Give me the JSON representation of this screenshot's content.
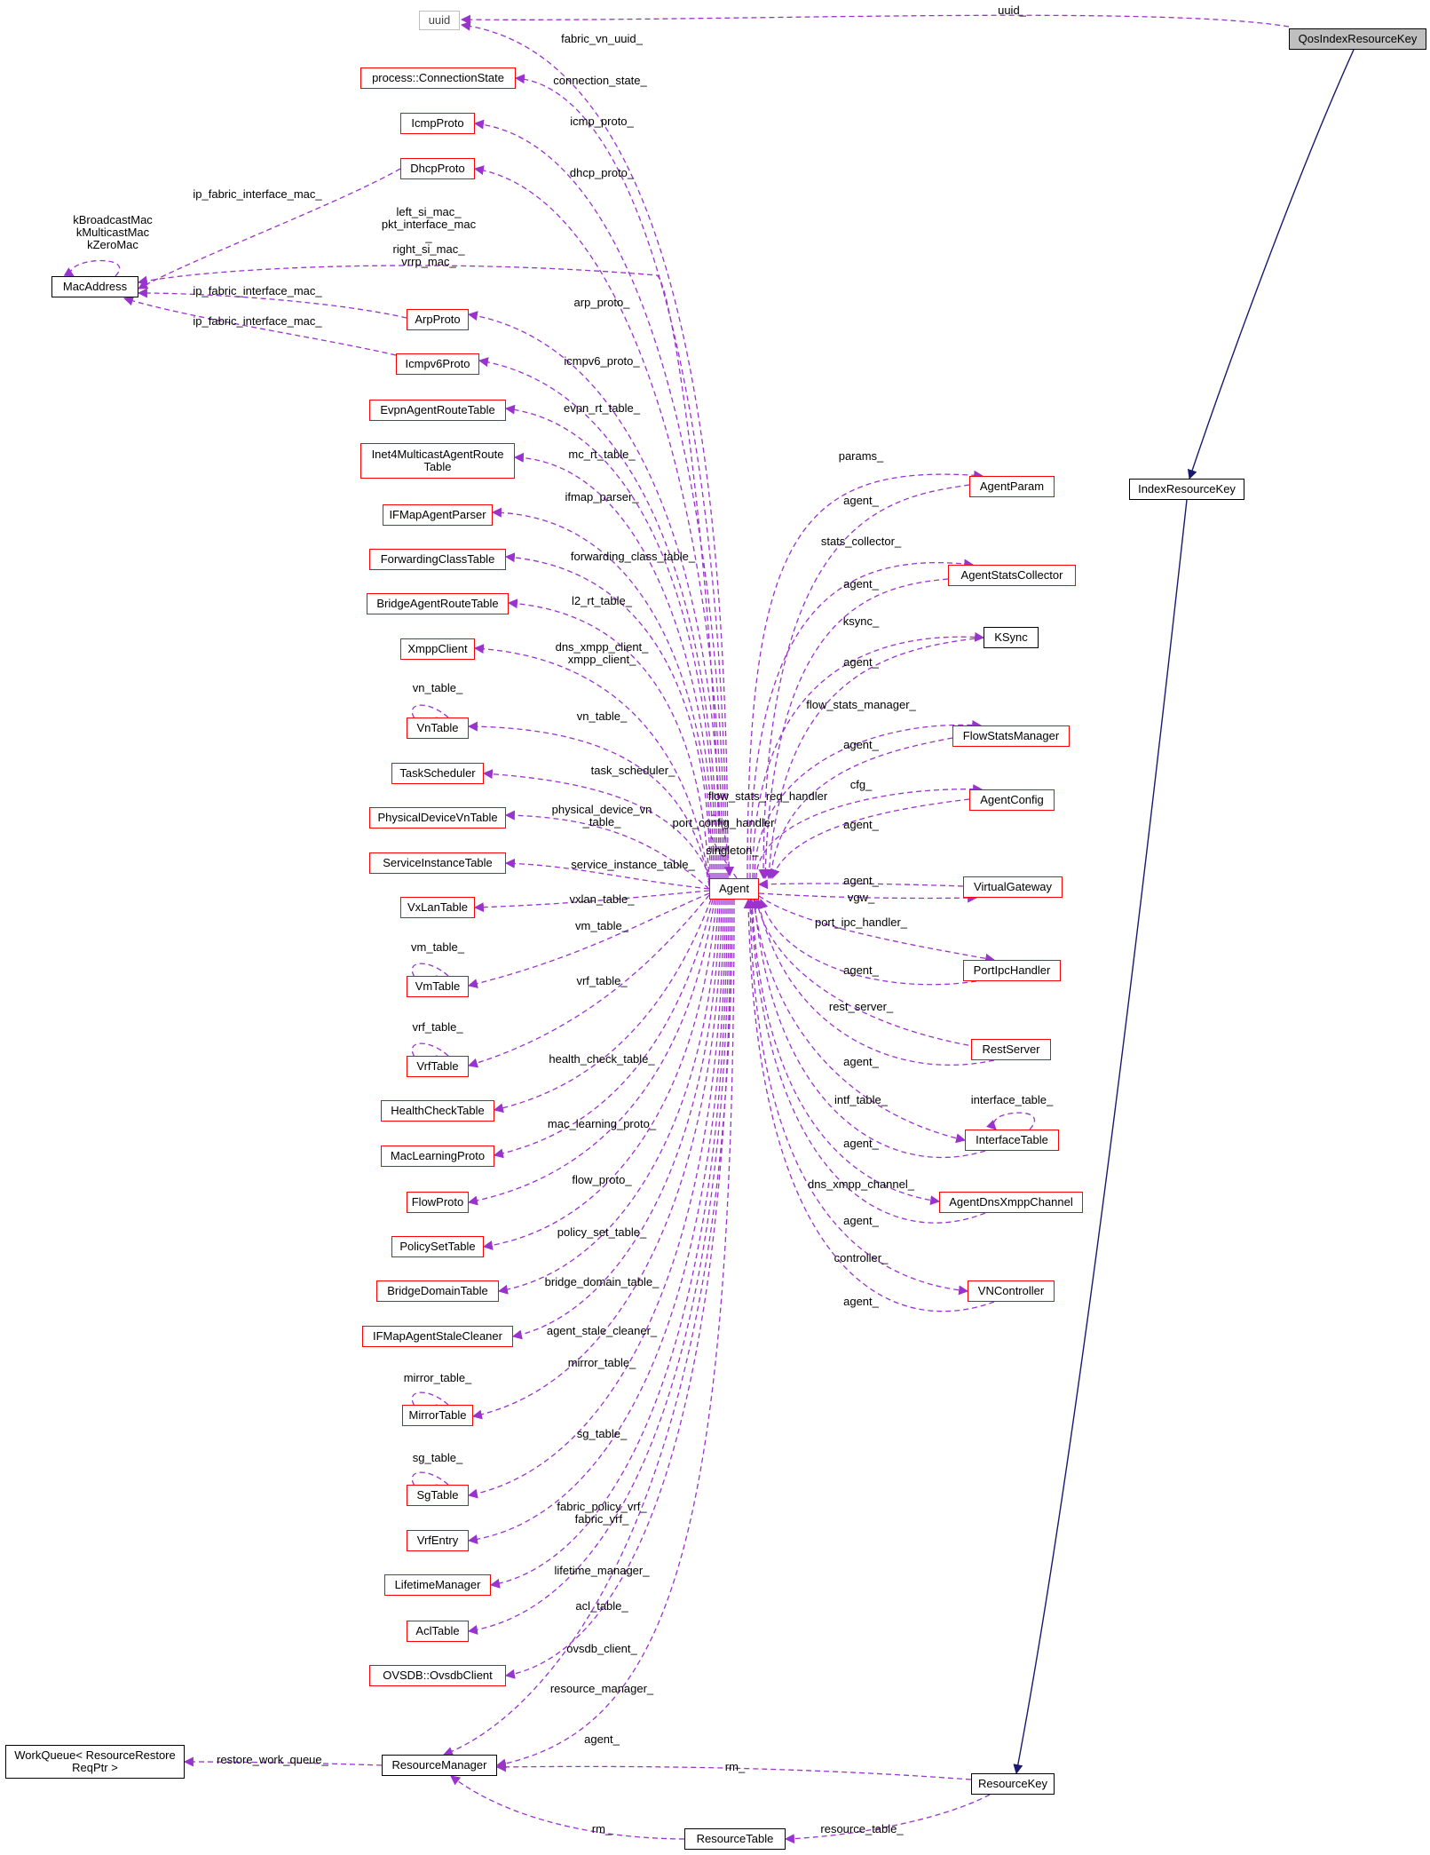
{
  "colors": {
    "usage_edge": "#9a32cd",
    "inherit_edge": "#191970",
    "node_border_red": "#ff0000",
    "node_border_black": "#000000",
    "selected_fill": "#bfbfbf"
  },
  "nodes": {
    "uuid": "uuid",
    "qos_index_resource_key": "QosIndexResourceKey",
    "index_resource_key": "IndexResourceKey",
    "resource_key": "ResourceKey",
    "resource_manager": "ResourceManager",
    "resource_table": "ResourceTable",
    "work_queue": "WorkQueue< ResourceRestore\nReqPtr >",
    "agent": "Agent",
    "mac_address": "MacAddress",
    "connection_state": "process::ConnectionState",
    "icmp_proto": "IcmpProto",
    "dhcp_proto": "DhcpProto",
    "arp_proto": "ArpProto",
    "icmpv6_proto": "Icmpv6Proto",
    "evpn_agent_route_table": "EvpnAgentRouteTable",
    "inet4_multicast_agent_route_table": "Inet4MulticastAgentRoute\nTable",
    "ifmap_agent_parser": "IFMapAgentParser",
    "forwarding_class_table": "ForwardingClassTable",
    "bridge_agent_route_table": "BridgeAgentRouteTable",
    "xmpp_client": "XmppClient",
    "vn_table": "VnTable",
    "task_scheduler": "TaskScheduler",
    "physical_device_vn_table": "PhysicalDeviceVnTable",
    "service_instance_table": "ServiceInstanceTable",
    "vxlan_table": "VxLanTable",
    "vm_table": "VmTable",
    "vrf_table": "VrfTable",
    "health_check_table": "HealthCheckTable",
    "mac_learning_proto": "MacLearningProto",
    "flow_proto": "FlowProto",
    "policy_set_table": "PolicySetTable",
    "bridge_domain_table": "BridgeDomainTable",
    "ifmap_agent_stale_cleaner": "IFMapAgentStaleCleaner",
    "mirror_table": "MirrorTable",
    "sg_table": "SgTable",
    "vrf_entry": "VrfEntry",
    "lifetime_manager": "LifetimeManager",
    "acl_table": "AclTable",
    "ovsdb_client": "OVSDB::OvsdbClient",
    "agent_param": "AgentParam",
    "agent_stats_collector": "AgentStatsCollector",
    "ksync": "KSync",
    "flow_stats_manager": "FlowStatsManager",
    "agent_config": "AgentConfig",
    "virtual_gateway": "VirtualGateway",
    "port_ipc_handler": "PortIpcHandler",
    "rest_server": "RestServer",
    "interface_table": "InterfaceTable",
    "agent_dns_xmpp_channel": "AgentDnsXmppChannel",
    "vn_controller": "VNController"
  },
  "edge_labels": {
    "uuid": "uuid_",
    "fabric_vn_uuid": "fabric_vn_uuid_",
    "connection_state": "connection_state_",
    "icmp_proto": "icmp_proto_",
    "dhcp_proto": "dhcp_proto_",
    "mac_self": "kBroadcastMac\nkMulticastMac\nkZeroMac",
    "dhcp_mac": "ip_fabric_interface_mac_",
    "agent_mac": "left_si_mac_\npkt_interface_mac\n_\nright_si_mac_\nvrrp_mac_",
    "arp_mac": "ip_fabric_interface_mac_",
    "icmpv6_mac": "ip_fabric_interface_mac_",
    "arp_proto": "arp_proto_",
    "icmpv6_proto": "icmpv6_proto_",
    "evpn_rt_table": "evpn_rt_table_",
    "mc_rt_table": "mc_rt_table_",
    "ifmap_parser": "ifmap_parser_",
    "forwarding_class_table": "forwarding_class_table_",
    "l2_rt_table": "l2_rt_table_",
    "xmpp_client": "dns_xmpp_client_\nxmpp_client_",
    "vn_table_self": "vn_table_",
    "vn_table": "vn_table_",
    "task_scheduler": "task_scheduler_",
    "physical_device_vn_table": "physical_device_vn\n_table_",
    "service_instance_table": "service_instance_table_",
    "vxlan_table": "vxlan_table_",
    "vm_table_self": "vm_table_",
    "vm_table": "vm_table_",
    "vrf_table_self": "vrf_table_",
    "vrf_table": "vrf_table_",
    "health_check_table": "health_check_table_",
    "mac_learning_proto": "mac_learning_proto_",
    "flow_proto": "flow_proto_",
    "policy_set_table": "policy_set_table_",
    "bridge_domain_table": "bridge_domain_table_",
    "agent_stale_cleaner": "agent_stale_cleaner_",
    "mirror_table_self": "mirror_table_",
    "mirror_table": "mirror_table_",
    "sg_table_self": "sg_table_",
    "sg_table": "sg_table_",
    "fabric_vrf": "fabric_policy_vrf_\nfabric_vrf_",
    "lifetime_manager": "lifetime_manager_",
    "acl_table": "acl_table_",
    "ovsdb_client": "ovsdb_client_",
    "resource_manager": "resource_manager_",
    "rm_agent": "agent_",
    "restore_work_queue": "restore_work_queue_",
    "rk_rm": "rm_",
    "rt_rm": "rm_",
    "resource_table": "resource_table_",
    "flow_stats_req_handler": "flow_stats_req_handler",
    "port_config_handler": "port_config_handler",
    "singleton": "singleton_",
    "params": "params_",
    "param_agent": "agent_",
    "stats_collector": "stats_collector_",
    "stats_agent": "agent_",
    "ksync": "ksync_",
    "ksync_agent": "agent_",
    "flow_stats_manager": "flow_stats_manager_",
    "fsm_agent": "agent_",
    "cfg": "cfg_",
    "cfg_agent": "agent_",
    "vgw_agent": "agent_",
    "vgw": "vgw_",
    "port_ipc_handler": "port_ipc_handler_",
    "pih_agent": "agent_",
    "rest_server": "rest_server_",
    "rest_agent": "agent_",
    "interface_table_self": "interface_table_",
    "intf_table": "intf_table_",
    "intf_agent": "agent_",
    "dns_xmpp_channel": "dns_xmpp_channel_",
    "dns_agent": "agent_",
    "controller": "controller_",
    "controller_agent": "agent_"
  }
}
